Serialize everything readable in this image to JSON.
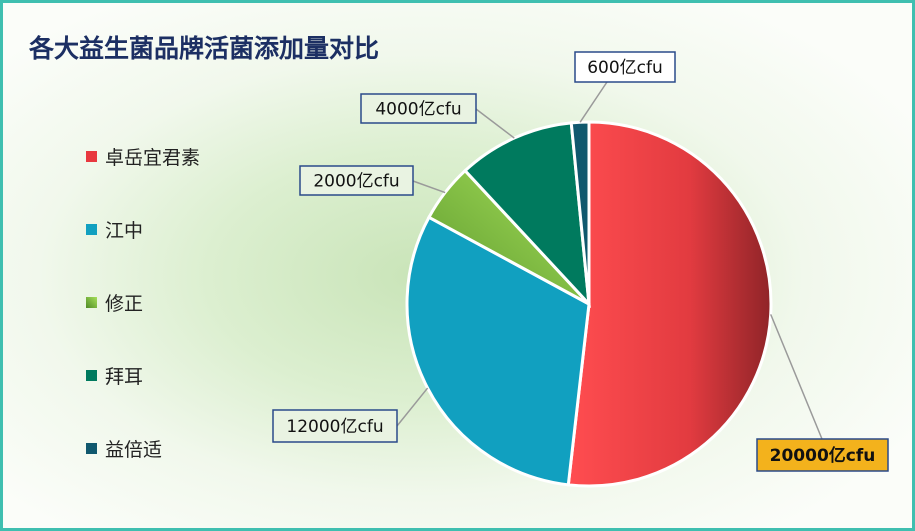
{
  "chart_data": {
    "type": "pie",
    "title": "各大益生菌品牌活菌添加量对比",
    "legend_position": "left",
    "slices": [
      {
        "name": "卓岳宜君素",
        "value": 20000,
        "label": "20000亿cfu",
        "color": "#e8383f"
      },
      {
        "name": "江中",
        "value": 12000,
        "label": "12000亿cfu",
        "color": "#11a0c0"
      },
      {
        "name": "修正",
        "value": 2000,
        "label": "2000亿cfu",
        "color": "#8cc63f"
      },
      {
        "name": "拜耳",
        "value": 4000,
        "label": "4000亿cfu",
        "color": "#007a5e"
      },
      {
        "name": "益倍适",
        "value": 600,
        "label": "600亿cfu",
        "color": "#10586e"
      }
    ]
  }
}
